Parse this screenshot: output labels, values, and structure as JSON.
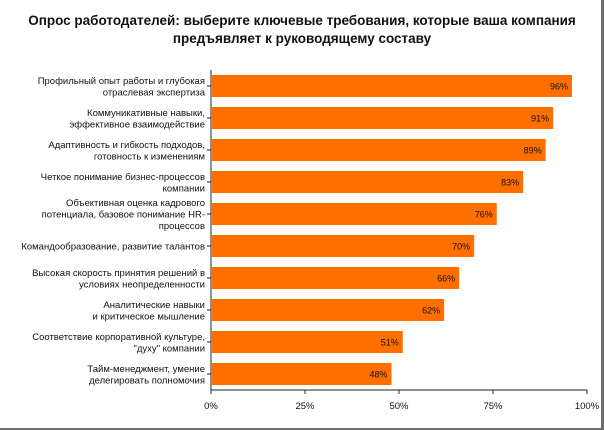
{
  "chart_data": {
    "type": "bar",
    "orientation": "horizontal",
    "title": "Опрос работодателей: выберите ключевые требования, которые ваша компания предъявляет к руководящему составу",
    "categories": [
      [
        "Профильный опыт работы и глубокая",
        "отраслевая экспертиза"
      ],
      [
        "Коммуникативные навыки,",
        "эффективное взаимодействие"
      ],
      [
        "Адаптивность и гибкость подходов,",
        "готовность к изменениям"
      ],
      [
        "Четкое понимание бизнес-процессов",
        "компании"
      ],
      [
        "Объективная оценка кадрового",
        "потенциала, базовое понимание HR-",
        "процессов"
      ],
      [
        "Командообразование, развитие талантов"
      ],
      [
        "Высокая скорость принятия решений в",
        "условиях неопределенности"
      ],
      [
        "Аналитические навыки",
        "и критическое мышление"
      ],
      [
        "Соответствие корпоративной культуре,",
        "\"духу\" компании"
      ],
      [
        "Тайм-менеджмент, умение",
        "делегировать полномочия"
      ]
    ],
    "values": [
      96,
      91,
      89,
      83,
      76,
      70,
      66,
      62,
      51,
      48
    ],
    "value_labels": [
      "96%",
      "91%",
      "89%",
      "83%",
      "76%",
      "70%",
      "66%",
      "62%",
      "51%",
      "48%"
    ],
    "xlim": [
      0,
      100
    ],
    "xticks": [
      0,
      25,
      50,
      75,
      100
    ],
    "xtick_labels": [
      "0%",
      "25%",
      "50%",
      "75%",
      "100%"
    ],
    "xlabel": "",
    "ylabel": "",
    "bar_color": "#FF6F00",
    "grid": false
  }
}
